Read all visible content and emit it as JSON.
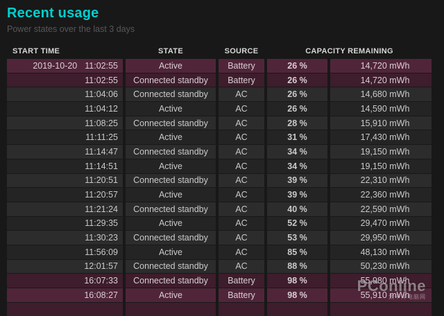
{
  "page": {
    "title": "Recent usage",
    "subtitle": "Power states over the last 3 days"
  },
  "table": {
    "headers": {
      "start_time": "START TIME",
      "state": "STATE",
      "source": "SOURCE",
      "capacity": "CAPACITY REMAINING"
    },
    "rows": [
      {
        "date": "2019-10-20",
        "time": "11:02:55",
        "state": "Active",
        "source": "Battery",
        "percent": "26 %",
        "mwh": "14,720 mWh"
      },
      {
        "date": "",
        "time": "11:02:55",
        "state": "Connected standby",
        "source": "Battery",
        "percent": "26 %",
        "mwh": "14,720 mWh"
      },
      {
        "date": "",
        "time": "11:04:06",
        "state": "Connected standby",
        "source": "AC",
        "percent": "26 %",
        "mwh": "14,680 mWh"
      },
      {
        "date": "",
        "time": "11:04:12",
        "state": "Active",
        "source": "AC",
        "percent": "26 %",
        "mwh": "14,590 mWh"
      },
      {
        "date": "",
        "time": "11:08:25",
        "state": "Connected standby",
        "source": "AC",
        "percent": "28 %",
        "mwh": "15,910 mWh"
      },
      {
        "date": "",
        "time": "11:11:25",
        "state": "Active",
        "source": "AC",
        "percent": "31 %",
        "mwh": "17,430 mWh"
      },
      {
        "date": "",
        "time": "11:14:47",
        "state": "Connected standby",
        "source": "AC",
        "percent": "34 %",
        "mwh": "19,150 mWh"
      },
      {
        "date": "",
        "time": "11:14:51",
        "state": "Active",
        "source": "AC",
        "percent": "34 %",
        "mwh": "19,150 mWh"
      },
      {
        "date": "",
        "time": "11:20:51",
        "state": "Connected standby",
        "source": "AC",
        "percent": "39 %",
        "mwh": "22,310 mWh"
      },
      {
        "date": "",
        "time": "11:20:57",
        "state": "Active",
        "source": "AC",
        "percent": "39 %",
        "mwh": "22,360 mWh"
      },
      {
        "date": "",
        "time": "11:21:24",
        "state": "Connected standby",
        "source": "AC",
        "percent": "40 %",
        "mwh": "22,590 mWh"
      },
      {
        "date": "",
        "time": "11:29:35",
        "state": "Active",
        "source": "AC",
        "percent": "52 %",
        "mwh": "29,470 mWh"
      },
      {
        "date": "",
        "time": "11:30:23",
        "state": "Connected standby",
        "source": "AC",
        "percent": "53 %",
        "mwh": "29,950 mWh"
      },
      {
        "date": "",
        "time": "11:56:09",
        "state": "Active",
        "source": "AC",
        "percent": "85 %",
        "mwh": "48,130 mWh"
      },
      {
        "date": "",
        "time": "12:01:57",
        "state": "Connected standby",
        "source": "AC",
        "percent": "88 %",
        "mwh": "50,230 mWh"
      },
      {
        "date": "",
        "time": "16:07:33",
        "state": "Connected standby",
        "source": "Battery",
        "percent": "98 %",
        "mwh": "55,980 mWh"
      },
      {
        "date": "",
        "time": "16:08:27",
        "state": "Active",
        "source": "Battery",
        "percent": "98 %",
        "mwh": "55,910 mWh"
      }
    ]
  },
  "watermark": {
    "brand": "PConline",
    "caption": "太平洋电脑网"
  },
  "colors": {
    "title": "#00CFCF",
    "background": "#181818",
    "battery_row_light": "#512539",
    "battery_row_dark": "#3E1D2C",
    "ac_row_light": "#2C2C2C",
    "ac_row_dark": "#242424"
  }
}
